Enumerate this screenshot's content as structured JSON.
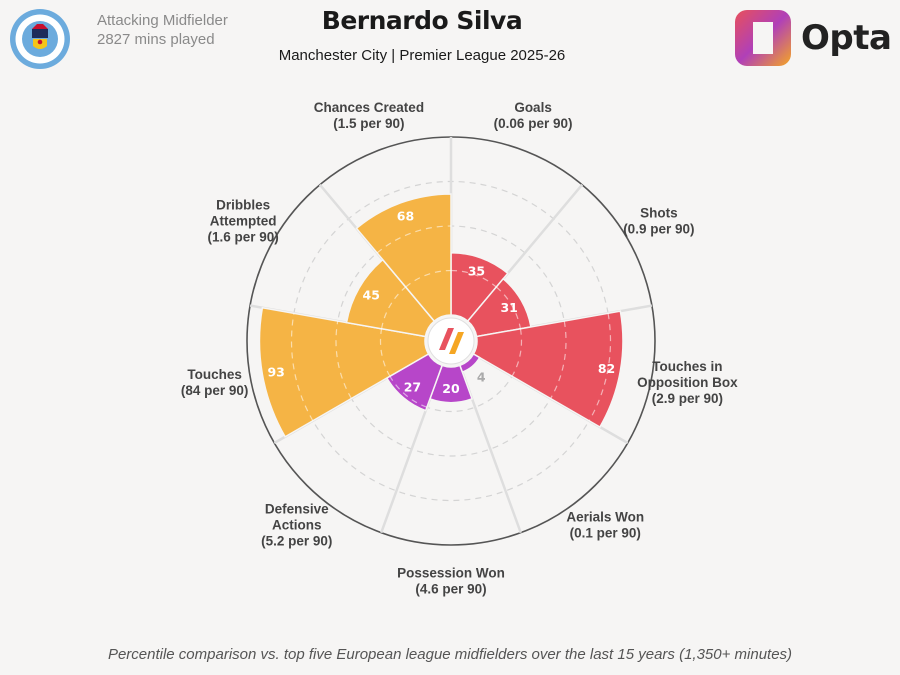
{
  "header": {
    "position": "Attacking Midfielder",
    "minutes": "2827 mins played",
    "player": "Bernardo Silva",
    "subtitle": "Manchester City | Premier League 2025-26",
    "brand": "Opta",
    "crest_text_top": "MANCHESTER",
    "crest_text_bottom": "CITY"
  },
  "footnote": "Percentile comparison vs. top five European league midfielders over the last 15 years (1,350+ minutes)",
  "colors": {
    "attacking": "#e8525e",
    "possession": "#f5b445",
    "defending": "#b746c9",
    "background": "#f6f5f4"
  },
  "chart_data": {
    "type": "pizza",
    "value_scale": "percentile",
    "rlim": [
      0,
      100
    ],
    "grid": true,
    "categories": [
      {
        "name": "Goals",
        "per90": "(0.06 per 90)",
        "value": 35,
        "group": "attacking"
      },
      {
        "name": "Shots",
        "per90": "(0.9 per 90)",
        "value": 31,
        "group": "attacking"
      },
      {
        "name": "Touches in Opposition Box",
        "label_lines": [
          "Touches in",
          "Opposition Box"
        ],
        "per90": "(2.9 per 90)",
        "value": 82,
        "group": "attacking"
      },
      {
        "name": "Aerials Won",
        "per90": "(0.1 per 90)",
        "value": 4,
        "group": "defending"
      },
      {
        "name": "Possession Won",
        "per90": "(4.6 per 90)",
        "value": 20,
        "group": "defending"
      },
      {
        "name": "Defensive Actions",
        "label_lines": [
          "Defensive",
          "Actions"
        ],
        "per90": "(5.2 per 90)",
        "value": 27,
        "group": "defending"
      },
      {
        "name": "Touches",
        "per90": "(84 per 90)",
        "value": 93,
        "group": "possession"
      },
      {
        "name": "Dribbles Attempted",
        "label_lines": [
          "Dribbles",
          "Attempted"
        ],
        "per90": "(1.6 per 90)",
        "value": 45,
        "group": "possession"
      },
      {
        "name": "Chances Created",
        "per90": "(1.5 per 90)",
        "value": 68,
        "group": "possession"
      }
    ]
  }
}
